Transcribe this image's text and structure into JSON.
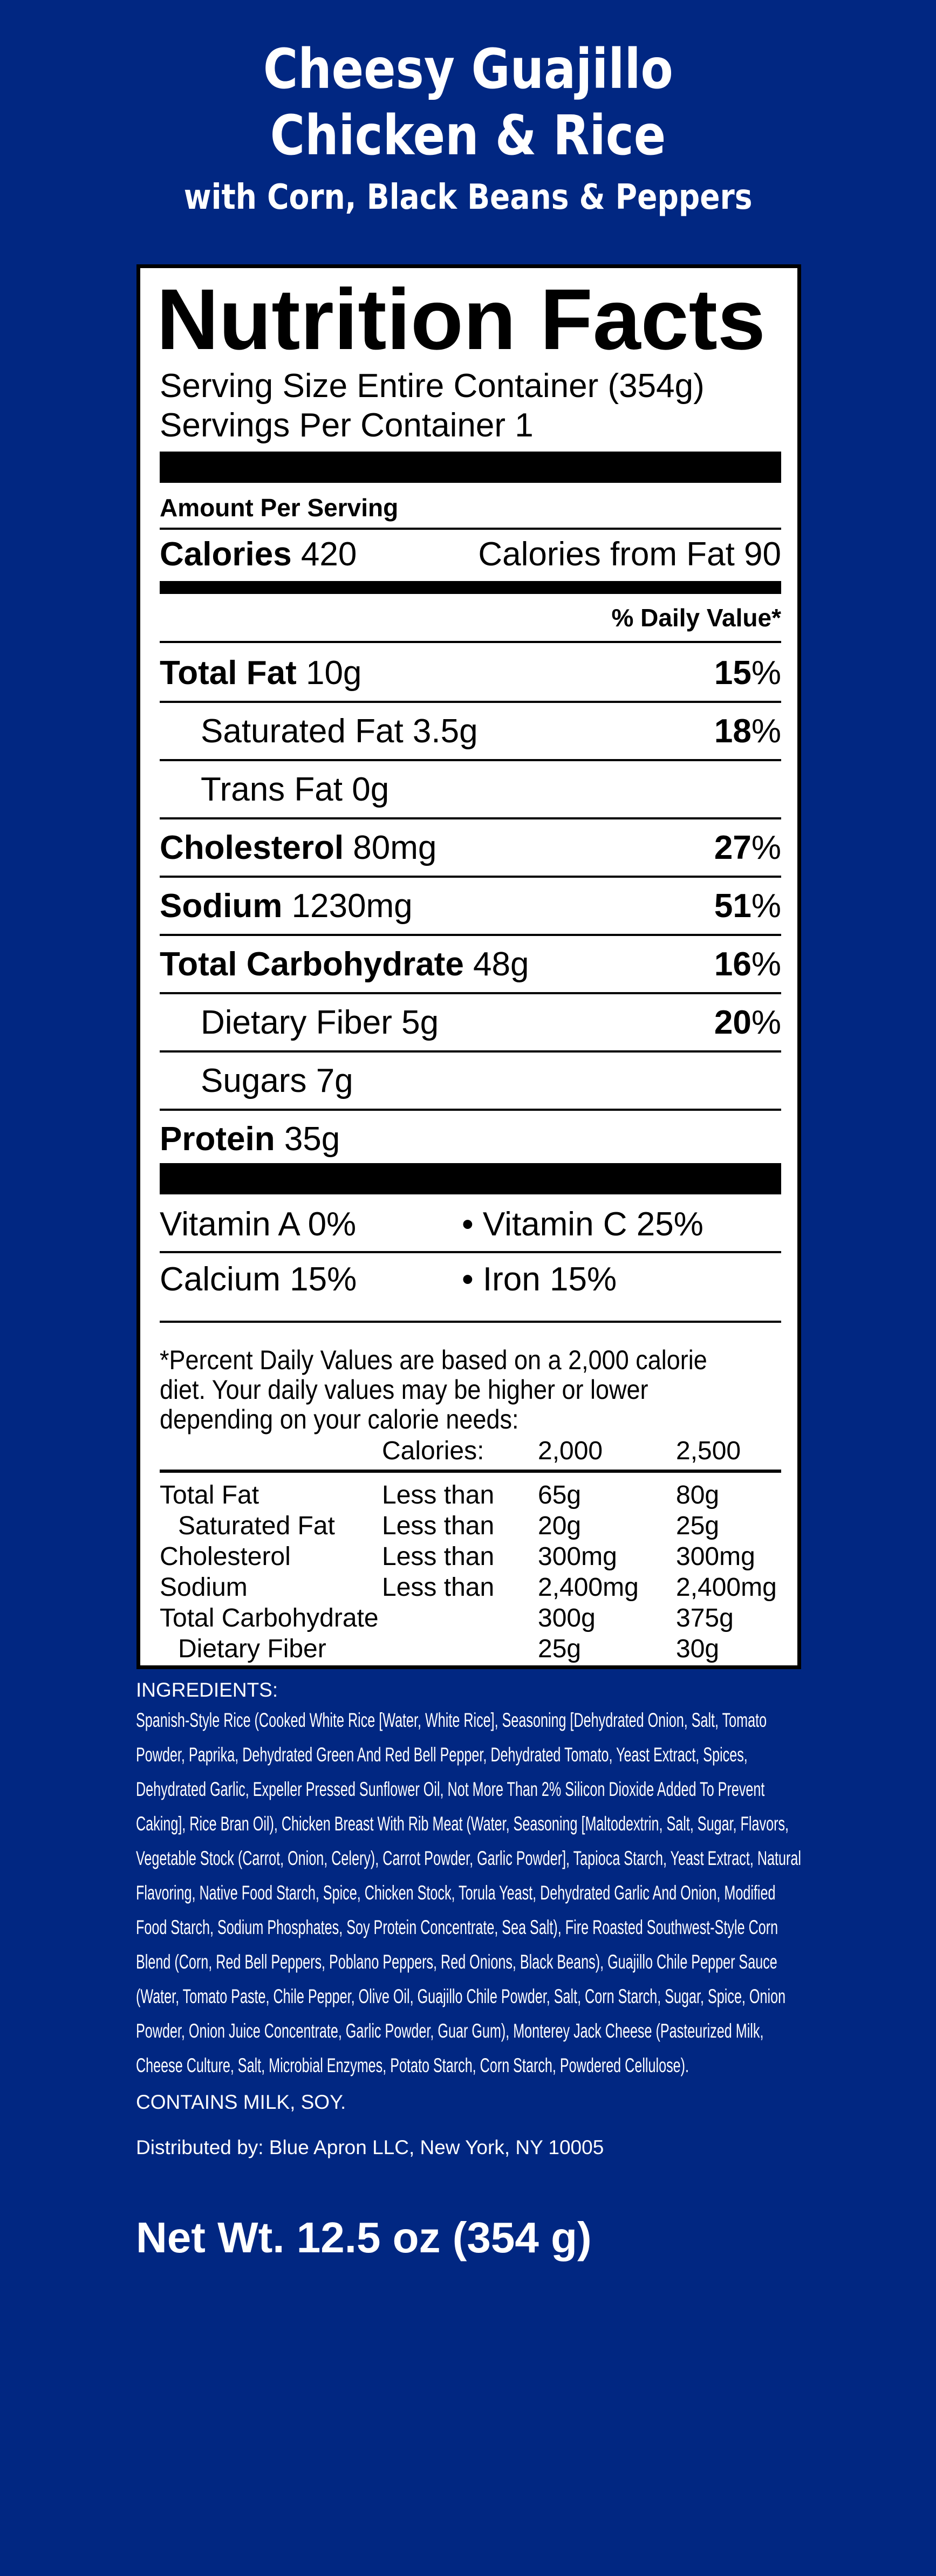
{
  "header": {
    "title_line1": "Cheesy Guajillo",
    "title_line2": "Chicken & Rice",
    "subtitle": "with Corn, Black Beans & Peppers"
  },
  "colors": {
    "background": "#012782",
    "label_bg": "#ffffff",
    "text": "#000000"
  },
  "nutrition": {
    "heading": "Nutrition Facts",
    "serving_size": "Serving Size Entire Container (354g)",
    "servings_per_container": "Servings Per Container 1",
    "amount_per_serving": "Amount Per Serving",
    "calories_label": "Calories",
    "calories_value": "420",
    "calories_from_fat": "Calories from Fat 90",
    "daily_value_header": "% Daily Value*",
    "rows": [
      {
        "label": "Total Fat",
        "amount": "10g",
        "dv": "15",
        "pct": "%",
        "bold": true
      },
      {
        "label": "Saturated Fat",
        "amount": "3.5g",
        "dv": "18",
        "pct": "%",
        "bold": false
      },
      {
        "label": "Trans Fat",
        "amount": "0g",
        "dv": "",
        "pct": "",
        "bold": false
      },
      {
        "label": "Cholesterol",
        "amount": "80mg",
        "dv": "27",
        "pct": "%",
        "bold": true
      },
      {
        "label": "Sodium",
        "amount": "1230mg",
        "dv": "51",
        "pct": "%",
        "bold": true
      },
      {
        "label": "Total Carbohydrate",
        "amount": "48g",
        "dv": "16",
        "pct": "%",
        "bold": true
      },
      {
        "label": "Dietary Fiber",
        "amount": "5g",
        "dv": "20",
        "pct": "%",
        "bold": false
      },
      {
        "label": "Sugars",
        "amount": "7g",
        "dv": "",
        "pct": "",
        "bold": false
      },
      {
        "label": "Protein",
        "amount": "35g",
        "dv": "",
        "pct": "",
        "bold": true
      }
    ],
    "vitamins": [
      {
        "left": "Vitamin A 0%",
        "right": "• Vitamin C 25%"
      },
      {
        "left": "Calcium 15%",
        "right": "• Iron 15%"
      }
    ],
    "footnote": [
      "*Percent Daily Values are based on a 2,000 calorie",
      "diet. Your daily values may be higher or lower",
      "depending on your calorie needs:"
    ],
    "table": {
      "header": [
        "Calories:",
        "2,000",
        "2,500"
      ],
      "rows": [
        [
          "Total Fat",
          "Less than",
          "65g",
          "80g"
        ],
        [
          "Saturated Fat",
          "Less than",
          "20g",
          "25g"
        ],
        [
          "Cholesterol",
          "Less than",
          "300mg",
          "300mg"
        ],
        [
          "Sodium",
          "Less than",
          "2,400mg",
          "2,400mg"
        ],
        [
          "Total Carbohydrate",
          "",
          "300g",
          "375g"
        ],
        [
          "Dietary Fiber",
          "",
          "25g",
          "30g"
        ]
      ]
    }
  },
  "ingredients": {
    "heading": "INGREDIENTS:",
    "text": "Spanish-Style Rice (Cooked White Rice [Water, White Rice], Seasoning [Dehydrated Onion, Salt, Tomato Powder, Paprika, Dehydrated Green And Red Bell Pepper, Dehydrated Tomato, Yeast Extract, Spices, Dehydrated Garlic, Expeller Pressed Sunflower Oil, Not More Than 2% Silicon Dioxide Added To Prevent Caking], Rice Bran Oil), Chicken Breast With Rib Meat (Water, Seasoning [Maltodextrin, Salt, Sugar, Flavors, Vegetable Stock (Carrot, Onion, Celery), Carrot Powder, Garlic Powder], Tapioca Starch, Yeast Extract, Natural Flavoring, Native Food Starch, Spice, Chicken Stock, Torula Yeast, Dehydrated Garlic And Onion, Modified Food Starch, Sodium Phosphates, Soy Protein Concentrate, Sea Salt), Fire Roasted Southwest-Style Corn Blend (Corn, Red Bell Peppers, Poblano Peppers, Red Onions, Black Beans), Guajillo Chile Pepper Sauce (Water, Tomato Paste, Chile Pepper, Olive Oil, Guajillo Chile Powder, Salt, Corn Starch, Sugar, Spice, Onion Powder, Onion Juice Concentrate, Garlic Powder, Guar Gum), Monterey Jack Cheese (Pasteurized Milk, Cheese Culture, Salt, Microbial Enzymes, Potato Starch, Corn Starch, Powdered Cellulose).",
    "allergens": "CONTAINS MILK, SOY.",
    "distributor": "Distributed by: Blue Apron LLC, New York, NY 10005"
  },
  "net_weight": "Net Wt. 12.5 oz (354 g)"
}
